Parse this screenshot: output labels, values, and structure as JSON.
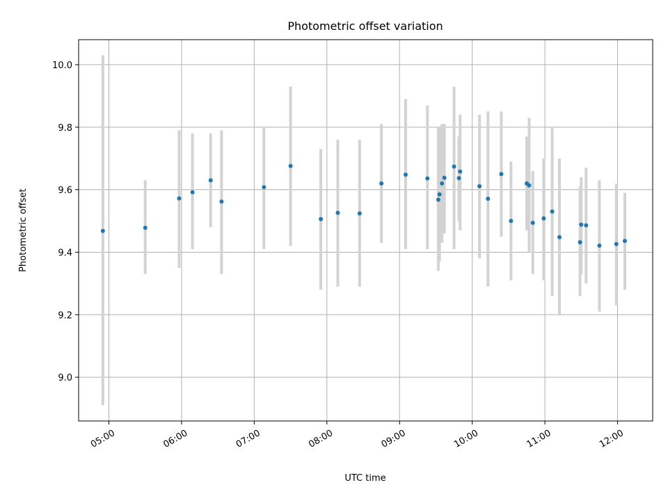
{
  "chart_data": {
    "type": "scatter",
    "title": "Photometric offset variation",
    "xlabel": "UTC time",
    "ylabel": "Photometric offset",
    "xlim": [
      "04:35",
      "12:29"
    ],
    "ylim": [
      8.86,
      10.08
    ],
    "x_ticks": [
      "05:00",
      "06:00",
      "07:00",
      "08:00",
      "09:00",
      "10:00",
      "11:00",
      "12:00"
    ],
    "y_ticks": [
      "9.0",
      "9.2",
      "9.4",
      "9.6",
      "9.8",
      "10.0"
    ],
    "grid": true,
    "colors": {
      "point": "#1f77b4",
      "errorbar": "#d3d3d3",
      "grid": "#b0b0b0"
    },
    "points": [
      {
        "t": "04:55",
        "y": 9.468,
        "lo": 8.91,
        "hi": 10.03
      },
      {
        "t": "05:30",
        "y": 9.478,
        "lo": 9.33,
        "hi": 9.63
      },
      {
        "t": "05:58",
        "y": 9.572,
        "lo": 9.35,
        "hi": 9.79
      },
      {
        "t": "06:09",
        "y": 9.592,
        "lo": 9.41,
        "hi": 9.78
      },
      {
        "t": "06:24",
        "y": 9.63,
        "lo": 9.48,
        "hi": 9.78
      },
      {
        "t": "06:33",
        "y": 9.562,
        "lo": 9.33,
        "hi": 9.79
      },
      {
        "t": "07:08",
        "y": 9.608,
        "lo": 9.41,
        "hi": 9.8
      },
      {
        "t": "07:30",
        "y": 9.676,
        "lo": 9.42,
        "hi": 9.93
      },
      {
        "t": "07:55",
        "y": 9.506,
        "lo": 9.28,
        "hi": 9.73
      },
      {
        "t": "08:09",
        "y": 9.526,
        "lo": 9.29,
        "hi": 9.76
      },
      {
        "t": "08:27",
        "y": 9.524,
        "lo": 9.29,
        "hi": 9.76
      },
      {
        "t": "08:45",
        "y": 9.62,
        "lo": 9.43,
        "hi": 9.81
      },
      {
        "t": "09:05",
        "y": 9.648,
        "lo": 9.41,
        "hi": 9.89
      },
      {
        "t": "09:23",
        "y": 9.636,
        "lo": 9.41,
        "hi": 9.87
      },
      {
        "t": "09:32",
        "y": 9.568,
        "lo": 9.34,
        "hi": 9.8
      },
      {
        "t": "09:33",
        "y": 9.585,
        "lo": 9.37,
        "hi": 9.8
      },
      {
        "t": "09:35",
        "y": 9.62,
        "lo": 9.43,
        "hi": 9.81
      },
      {
        "t": "09:37",
        "y": 9.638,
        "lo": 9.46,
        "hi": 9.81
      },
      {
        "t": "09:45",
        "y": 9.674,
        "lo": 9.41,
        "hi": 9.93
      },
      {
        "t": "09:49",
        "y": 9.637,
        "lo": 9.5,
        "hi": 9.77
      },
      {
        "t": "09:50",
        "y": 9.658,
        "lo": 9.47,
        "hi": 9.84
      },
      {
        "t": "10:06",
        "y": 9.611,
        "lo": 9.38,
        "hi": 9.84
      },
      {
        "t": "10:13",
        "y": 9.571,
        "lo": 9.29,
        "hi": 9.85
      },
      {
        "t": "10:24",
        "y": 9.65,
        "lo": 9.45,
        "hi": 9.85
      },
      {
        "t": "10:32",
        "y": 9.5,
        "lo": 9.31,
        "hi": 9.69
      },
      {
        "t": "10:45",
        "y": 9.62,
        "lo": 9.47,
        "hi": 9.77
      },
      {
        "t": "10:47",
        "y": 9.614,
        "lo": 9.4,
        "hi": 9.83
      },
      {
        "t": "10:50",
        "y": 9.494,
        "lo": 9.33,
        "hi": 9.66
      },
      {
        "t": "10:59",
        "y": 9.508,
        "lo": 9.31,
        "hi": 9.7
      },
      {
        "t": "11:06",
        "y": 9.53,
        "lo": 9.26,
        "hi": 9.8
      },
      {
        "t": "11:12",
        "y": 9.448,
        "lo": 9.2,
        "hi": 9.7
      },
      {
        "t": "11:29",
        "y": 9.432,
        "lo": 9.26,
        "hi": 9.61
      },
      {
        "t": "11:30",
        "y": 9.488,
        "lo": 9.33,
        "hi": 9.64
      },
      {
        "t": "11:34",
        "y": 9.486,
        "lo": 9.3,
        "hi": 9.67
      },
      {
        "t": "11:45",
        "y": 9.421,
        "lo": 9.21,
        "hi": 9.63
      },
      {
        "t": "11:59",
        "y": 9.426,
        "lo": 9.23,
        "hi": 9.62
      },
      {
        "t": "12:06",
        "y": 9.436,
        "lo": 9.28,
        "hi": 9.59
      }
    ]
  }
}
